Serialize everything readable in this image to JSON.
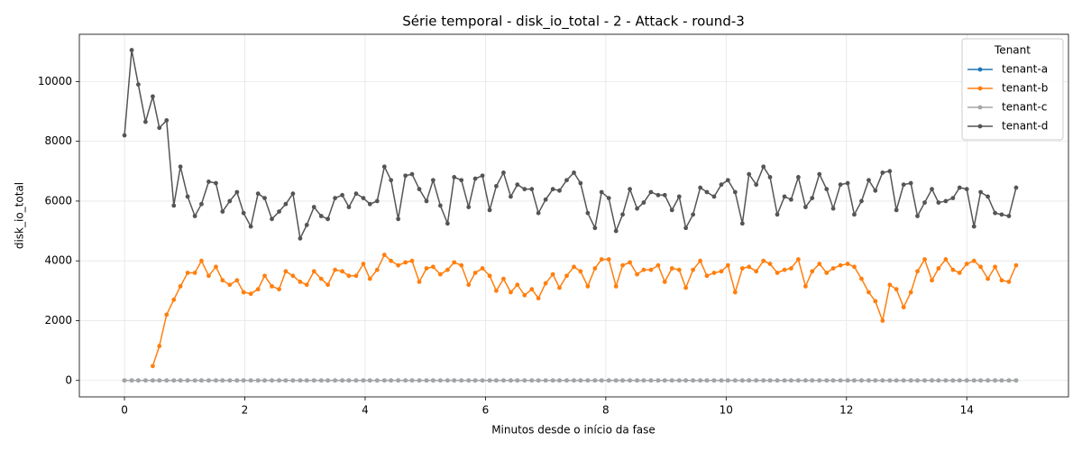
{
  "chart_data": {
    "type": "line",
    "title": "Série temporal - disk_io_total - 2 - Attack - round-3",
    "x_label": "Minutos desde o início da fase",
    "y_label": "disk_io_total",
    "legend_title": "Tenant",
    "legend_position": "upper right",
    "grid": true,
    "xlim": [
      -0.75,
      15.69
    ],
    "ylim": [
      -550,
      11580
    ],
    "xticks": [
      0,
      2,
      4,
      6,
      8,
      10,
      12,
      14
    ],
    "yticks": [
      0,
      2000,
      4000,
      6000,
      8000,
      10000
    ],
    "x": [
      0,
      0.12,
      0.23,
      0.35,
      0.47,
      0.58,
      0.7,
      0.82,
      0.93,
      1.05,
      1.17,
      1.28,
      1.4,
      1.52,
      1.63,
      1.75,
      1.87,
      1.98,
      2.1,
      2.22,
      2.33,
      2.45,
      2.57,
      2.68,
      2.8,
      2.92,
      3.03,
      3.15,
      3.27,
      3.38,
      3.5,
      3.62,
      3.73,
      3.85,
      3.97,
      4.08,
      4.2,
      4.32,
      4.43,
      4.55,
      4.67,
      4.78,
      4.9,
      5.02,
      5.13,
      5.25,
      5.37,
      5.48,
      5.6,
      5.72,
      5.83,
      5.95,
      6.07,
      6.18,
      6.3,
      6.42,
      6.53,
      6.65,
      6.77,
      6.88,
      7,
      7.12,
      7.23,
      7.35,
      7.47,
      7.58,
      7.7,
      7.82,
      7.93,
      8.05,
      8.17,
      8.28,
      8.4,
      8.52,
      8.63,
      8.75,
      8.87,
      8.98,
      9.1,
      9.22,
      9.33,
      9.45,
      9.57,
      9.68,
      9.8,
      9.92,
      10.03,
      10.15,
      10.27,
      10.38,
      10.5,
      10.62,
      10.73,
      10.85,
      10.97,
      11.08,
      11.2,
      11.32,
      11.43,
      11.55,
      11.67,
      11.78,
      11.9,
      12.02,
      12.13,
      12.25,
      12.37,
      12.48,
      12.6,
      12.72,
      12.83,
      12.95,
      13.07,
      13.18,
      13.3,
      13.42,
      13.53,
      13.65,
      13.77,
      13.88,
      14,
      14.12,
      14.23,
      14.35,
      14.47,
      14.58,
      14.7,
      14.82
    ],
    "series": [
      {
        "name": "tenant-a",
        "color": "#1f77b4",
        "values": [
          0,
          0,
          0,
          0,
          0,
          0,
          0,
          0,
          0,
          0,
          0,
          0,
          0,
          0,
          0,
          0,
          0,
          0,
          0,
          0,
          0,
          0,
          0,
          0,
          0,
          0,
          0,
          0,
          0,
          0,
          0,
          0,
          0,
          0,
          0,
          0,
          0,
          0,
          0,
          0,
          0,
          0,
          0,
          0,
          0,
          0,
          0,
          0,
          0,
          0,
          0,
          0,
          0,
          0,
          0,
          0,
          0,
          0,
          0,
          0,
          0,
          0,
          0,
          0,
          0,
          0,
          0,
          0,
          0,
          0,
          0,
          0,
          0,
          0,
          0,
          0,
          0,
          0,
          0,
          0,
          0,
          0,
          0,
          0,
          0,
          0,
          0,
          0,
          0,
          0,
          0,
          0,
          0,
          0,
          0,
          0,
          0,
          0,
          0,
          0,
          0,
          0,
          0,
          0,
          0,
          0,
          0,
          0,
          0,
          0,
          0,
          0,
          0,
          0,
          0,
          0,
          0,
          0,
          0,
          0,
          0,
          0,
          0,
          0,
          0,
          0,
          0,
          0
        ]
      },
      {
        "name": "tenant-b",
        "color": "#ff7f0e",
        "values": [
          null,
          null,
          null,
          null,
          480,
          1150,
          2200,
          2700,
          3150,
          3600,
          3600,
          4000,
          3500,
          3800,
          3350,
          3200,
          3350,
          2950,
          2900,
          3050,
          3500,
          3150,
          3050,
          3650,
          3500,
          3300,
          3200,
          3650,
          3400,
          3200,
          3700,
          3650,
          3500,
          3500,
          3900,
          3400,
          3700,
          4200,
          4000,
          3850,
          3950,
          4000,
          3300,
          3750,
          3800,
          3550,
          3700,
          3950,
          3850,
          3200,
          3600,
          3750,
          3500,
          3000,
          3400,
          2950,
          3200,
          2850,
          3050,
          2750,
          3250,
          3550,
          3100,
          3500,
          3800,
          3650,
          3150,
          3750,
          4050,
          4050,
          3150,
          3850,
          3950,
          3550,
          3700,
          3700,
          3850,
          3300,
          3750,
          3700,
          3100,
          3700,
          4000,
          3500,
          3600,
          3650,
          3850,
          2950,
          3750,
          3800,
          3650,
          4000,
          3900,
          3600,
          3700,
          3750,
          4050,
          3150,
          3650,
          3900,
          3600,
          3750,
          3850,
          3900,
          3800,
          3400,
          2950,
          2650,
          2000,
          3200,
          3050,
          2450,
          2950,
          3650,
          4050,
          3350,
          3750,
          4050,
          3700,
          3600,
          3900,
          4000,
          3800,
          3400,
          3800,
          3350,
          3300,
          3850
        ]
      },
      {
        "name": "tenant-c",
        "color": "#a5a5a5",
        "values": [
          0,
          0,
          0,
          0,
          0,
          0,
          0,
          0,
          0,
          0,
          0,
          0,
          0,
          0,
          0,
          0,
          0,
          0,
          0,
          0,
          0,
          0,
          0,
          0,
          0,
          0,
          0,
          0,
          0,
          0,
          0,
          0,
          0,
          0,
          0,
          0,
          0,
          0,
          0,
          0,
          0,
          0,
          0,
          0,
          0,
          0,
          0,
          0,
          0,
          0,
          0,
          0,
          0,
          0,
          0,
          0,
          0,
          0,
          0,
          0,
          0,
          0,
          0,
          0,
          0,
          0,
          0,
          0,
          0,
          0,
          0,
          0,
          0,
          0,
          0,
          0,
          0,
          0,
          0,
          0,
          0,
          0,
          0,
          0,
          0,
          0,
          0,
          0,
          0,
          0,
          0,
          0,
          0,
          0,
          0,
          0,
          0,
          0,
          0,
          0,
          0,
          0,
          0,
          0,
          0,
          0,
          0,
          0,
          0,
          0,
          0,
          0,
          0,
          0,
          0,
          0,
          0,
          0,
          0,
          0,
          0,
          0,
          0,
          0,
          0,
          0,
          0,
          0
        ]
      },
      {
        "name": "tenant-d",
        "color": "#555555",
        "values": [
          8200,
          11050,
          9900,
          8650,
          9500,
          8450,
          8700,
          5850,
          7150,
          6150,
          5500,
          5900,
          6650,
          6600,
          5650,
          6000,
          6300,
          5600,
          5150,
          6250,
          6100,
          5400,
          5650,
          5900,
          6250,
          4750,
          5200,
          5800,
          5500,
          5400,
          6100,
          6200,
          5800,
          6250,
          6100,
          5900,
          6000,
          7150,
          6700,
          5400,
          6850,
          6900,
          6400,
          6000,
          6700,
          5850,
          5250,
          6800,
          6700,
          5800,
          6750,
          6850,
          5700,
          6500,
          6950,
          6150,
          6550,
          6400,
          6400,
          5600,
          6050,
          6400,
          6350,
          6700,
          6950,
          6600,
          5600,
          5100,
          6300,
          6100,
          5000,
          5550,
          6400,
          5750,
          5950,
          6300,
          6200,
          6200,
          5700,
          6150,
          5100,
          5550,
          6450,
          6300,
          6150,
          6550,
          6700,
          6300,
          5250,
          6900,
          6550,
          7150,
          6800,
          5550,
          6150,
          6050,
          6800,
          5800,
          6100,
          6900,
          6400,
          5750,
          6550,
          6600,
          5550,
          6000,
          6700,
          6350,
          6950,
          7000,
          5700,
          6550,
          6600,
          5500,
          5950,
          6400,
          5950,
          6000,
          6100,
          6450,
          6400,
          5150,
          6300,
          6150,
          5600,
          5550,
          5500,
          6450
        ]
      }
    ]
  }
}
